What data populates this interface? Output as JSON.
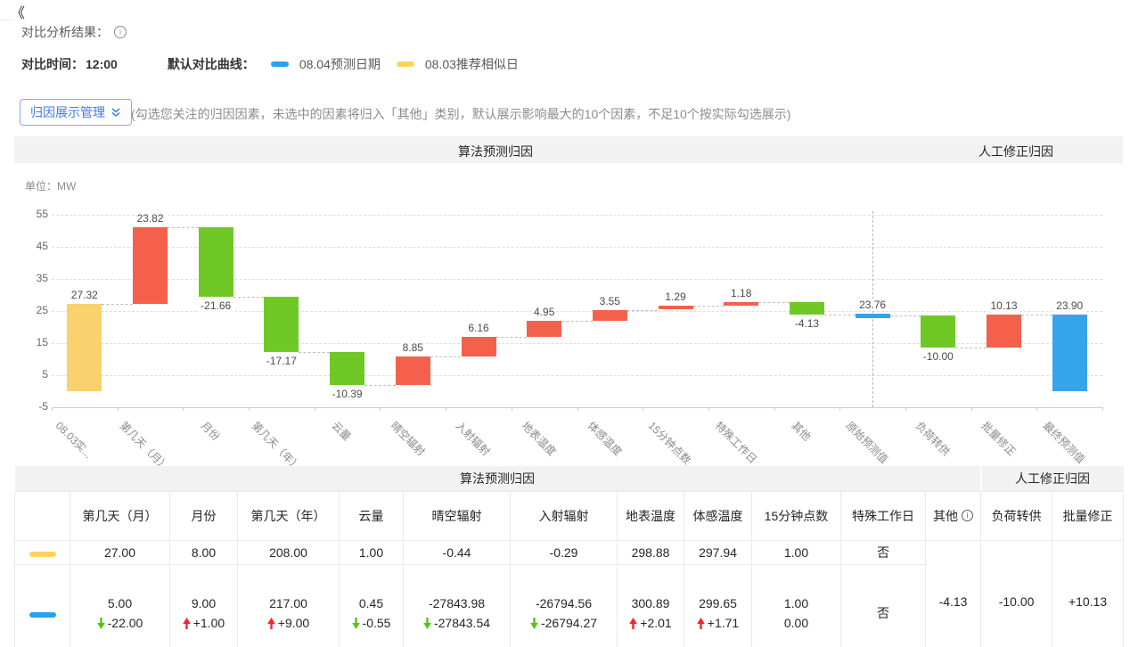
{
  "header": {
    "collapse_icon": "《",
    "title": "对比分析结果：",
    "compare_time_label": "对比时间：",
    "compare_time_value": "12:00",
    "default_curve_label": "默认对比曲线：",
    "legend": [
      {
        "label": "08.04预测日期",
        "color": "#2ba1eb"
      },
      {
        "label": "08.03推荐相似日",
        "color": "#fbd45f"
      }
    ],
    "manage_button_label": "归因展示管理",
    "hint": "(勾选您关注的归因因素，未选中的因素将归入「其他」类别，默认展示影响最大的10个因素，不足10个按实际勾选展示)"
  },
  "sections": {
    "left": "算法预测归因",
    "right": "人工修正归因"
  },
  "unit_label": "单位：MW",
  "chart_data": {
    "type": "waterfall-bar",
    "unit": "MW",
    "ylim": [
      -5,
      55
    ],
    "yticks": [
      55,
      45,
      35,
      25,
      15,
      5,
      -5
    ],
    "grid": "horizontal-dashed",
    "divider_index": 12,
    "colors": {
      "yellow": "#f9d26d",
      "red": "#f4604c",
      "green": "#70c827",
      "blue": "#36a4ea"
    },
    "bars": [
      {
        "category": "08.03实...",
        "label": "27.32",
        "start": 0,
        "end": 27.32,
        "color": "yellow",
        "label_pos": "above"
      },
      {
        "category": "第几天（月）",
        "label": "23.82",
        "start": 27.32,
        "end": 51.14,
        "color": "red",
        "label_pos": "above"
      },
      {
        "category": "月份",
        "label": "-21.66",
        "start": 51.14,
        "end": 29.48,
        "color": "green",
        "label_pos": "below"
      },
      {
        "category": "第几天（年）",
        "label": "-17.17",
        "start": 29.48,
        "end": 12.31,
        "color": "green",
        "label_pos": "below"
      },
      {
        "category": "云量",
        "label": "-10.39",
        "start": 12.31,
        "end": 1.92,
        "color": "green",
        "label_pos": "below"
      },
      {
        "category": "晴空辐射",
        "label": "8.85",
        "start": 1.92,
        "end": 10.77,
        "color": "red",
        "label_pos": "above"
      },
      {
        "category": "入射辐射",
        "label": "6.16",
        "start": 10.77,
        "end": 16.93,
        "color": "red",
        "label_pos": "above"
      },
      {
        "category": "地表温度",
        "label": "4.95",
        "start": 16.93,
        "end": 21.88,
        "color": "red",
        "label_pos": "above"
      },
      {
        "category": "体感温度",
        "label": "3.55",
        "start": 21.88,
        "end": 25.43,
        "color": "red",
        "label_pos": "above"
      },
      {
        "category": "15分钟点数",
        "label": "1.29",
        "start": 25.43,
        "end": 26.72,
        "color": "red",
        "label_pos": "above"
      },
      {
        "category": "特殊工作日",
        "label": "1.18",
        "start": 26.72,
        "end": 27.9,
        "color": "red",
        "label_pos": "above"
      },
      {
        "category": "其他",
        "label": "-4.13",
        "start": 27.9,
        "end": 23.77,
        "color": "green",
        "label_pos": "below"
      },
      {
        "category": "原始预测值",
        "label": "23.76",
        "type": "marker",
        "value": 23.76,
        "color": "blue",
        "label_pos": "above"
      },
      {
        "category": "负荷转供",
        "label": "-10.00",
        "start": 23.76,
        "end": 13.76,
        "color": "green",
        "label_pos": "below"
      },
      {
        "category": "批量修正",
        "label": "10.13",
        "start": 13.76,
        "end": 23.89,
        "color": "red",
        "label_pos": "above"
      },
      {
        "category": "最终预测值",
        "label": "23.90",
        "start": 0,
        "end": 23.9,
        "color": "blue",
        "label_pos": "above"
      }
    ]
  },
  "table": {
    "group_headers": [
      {
        "label": "算法预测归因"
      },
      {
        "label": "人工修正归因"
      }
    ],
    "columns": [
      "",
      "第几天（月）",
      "月份",
      "第几天（年）",
      "云量",
      "晴空辐射",
      "入射辐射",
      "地表温度",
      "体感温度",
      "15分钟点数",
      "特殊工作日",
      "其他",
      "负荷转供",
      "批量修正"
    ],
    "rows": [
      {
        "swatch_color": "#fbd45f",
        "values": [
          "27.00",
          "8.00",
          "208.00",
          "1.00",
          "-0.44",
          "-0.29",
          "298.88",
          "297.94",
          "1.00",
          "否"
        ]
      },
      {
        "swatch_color": "#2ba1eb",
        "cells": [
          {
            "main": "5.00",
            "delta": "-22.00",
            "dir": "down"
          },
          {
            "main": "9.00",
            "delta": "+1.00",
            "dir": "up"
          },
          {
            "main": "217.00",
            "delta": "+9.00",
            "dir": "up"
          },
          {
            "main": "0.45",
            "delta": "-0.55",
            "dir": "down"
          },
          {
            "main": "-27843.98",
            "delta": "-27843.54",
            "dir": "down"
          },
          {
            "main": "-26794.56",
            "delta": "-26794.27",
            "dir": "down"
          },
          {
            "main": "300.89",
            "delta": "+2.01",
            "dir": "up"
          },
          {
            "main": "299.65",
            "delta": "+1.71",
            "dir": "up"
          },
          {
            "main": "1.00",
            "delta": "0.00",
            "dir": "none"
          },
          {
            "main": "否"
          }
        ]
      }
    ],
    "merged": {
      "other": "-4.13",
      "load_transfer": "-10.00",
      "batch_revision": "+10.13"
    }
  }
}
